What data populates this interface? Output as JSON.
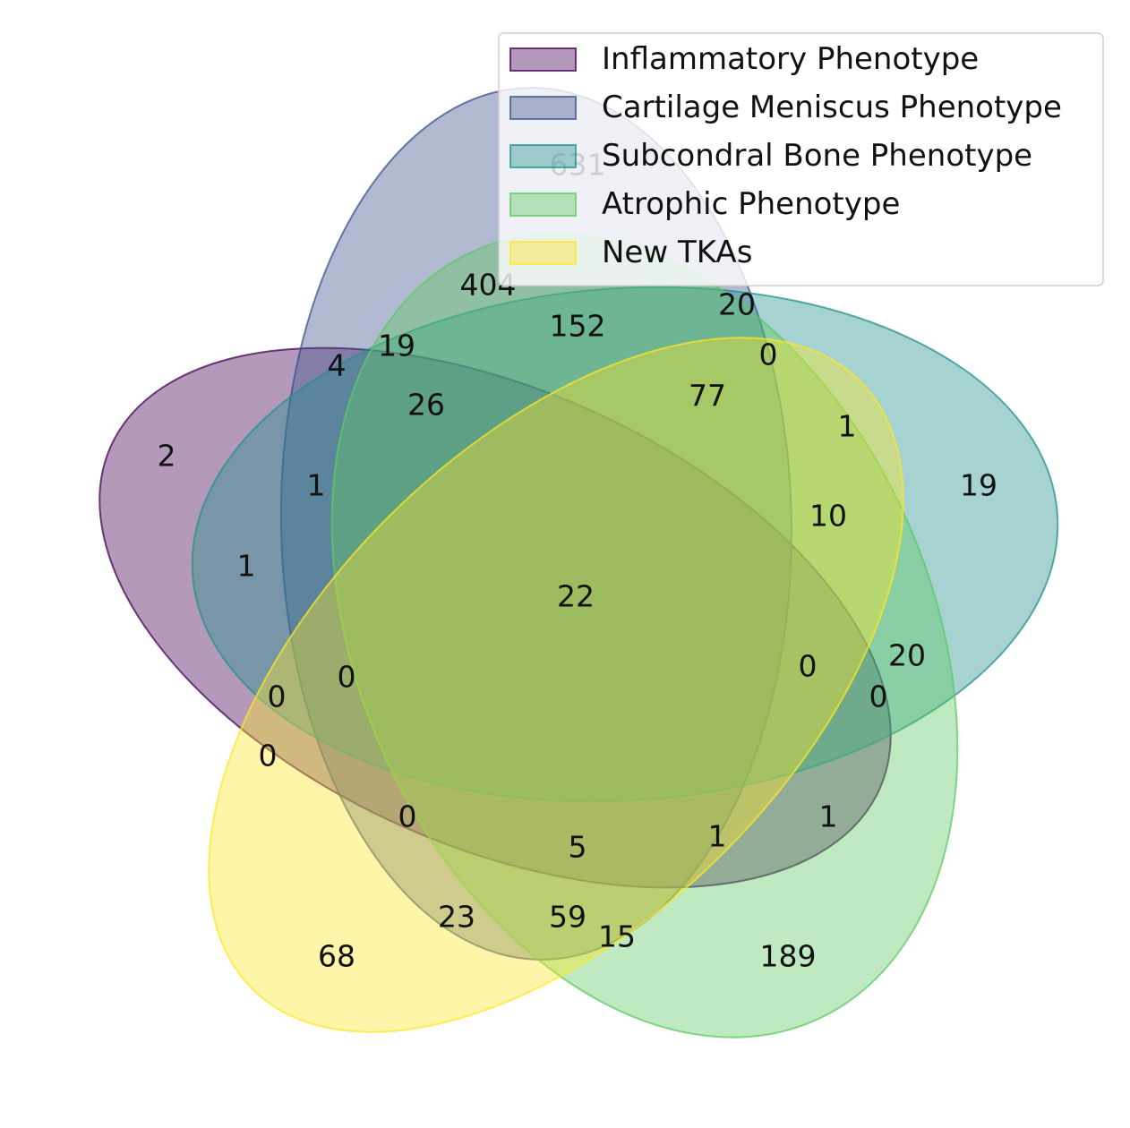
{
  "chart_data": {
    "type": "venn",
    "sets": [
      {
        "name": "Inflammatory Phenotype",
        "color": "#440154"
      },
      {
        "name": "Cartilage Meniscus Phenotype",
        "color": "#3b528b"
      },
      {
        "name": "Subcondral Bone Phenotype",
        "color": "#21918c"
      },
      {
        "name": "Atrophic Phenotype",
        "color": "#5ec962"
      },
      {
        "name": "New TKAs",
        "color": "#fde725"
      }
    ],
    "regions": [
      {
        "sets": "10000",
        "value": 2
      },
      {
        "sets": "01000",
        "value": 631
      },
      {
        "sets": "00100",
        "value": 19
      },
      {
        "sets": "00010",
        "value": 189
      },
      {
        "sets": "00001",
        "value": 68
      },
      {
        "sets": "01010",
        "value": 404
      },
      {
        "sets": "01110",
        "value": 152
      },
      {
        "sets": "01100",
        "value": 20
      },
      {
        "sets": "01101",
        "value": 0
      },
      {
        "sets": "01111",
        "value": 77
      },
      {
        "sets": "00101",
        "value": 1
      },
      {
        "sets": "00111",
        "value": 10
      },
      {
        "sets": "00110",
        "value": 20
      },
      {
        "sets": "10110",
        "value": 0
      },
      {
        "sets": "10111",
        "value": 0
      },
      {
        "sets": "10010",
        "value": 1
      },
      {
        "sets": "10011",
        "value": 1
      },
      {
        "sets": "00011",
        "value": 15
      },
      {
        "sets": "01011",
        "value": 59
      },
      {
        "sets": "11011",
        "value": 5
      },
      {
        "sets": "01001",
        "value": 23
      },
      {
        "sets": "11001",
        "value": 0
      },
      {
        "sets": "10001",
        "value": 0
      },
      {
        "sets": "10101",
        "value": 0
      },
      {
        "sets": "11101",
        "value": 0
      },
      {
        "sets": "10100",
        "value": 1
      },
      {
        "sets": "11100",
        "value": 1
      },
      {
        "sets": "11000",
        "value": 4
      },
      {
        "sets": "11010",
        "value": 19
      },
      {
        "sets": "11110",
        "value": 26
      },
      {
        "sets": "11111",
        "value": 22
      }
    ],
    "legend": {
      "position": "top-right"
    }
  }
}
